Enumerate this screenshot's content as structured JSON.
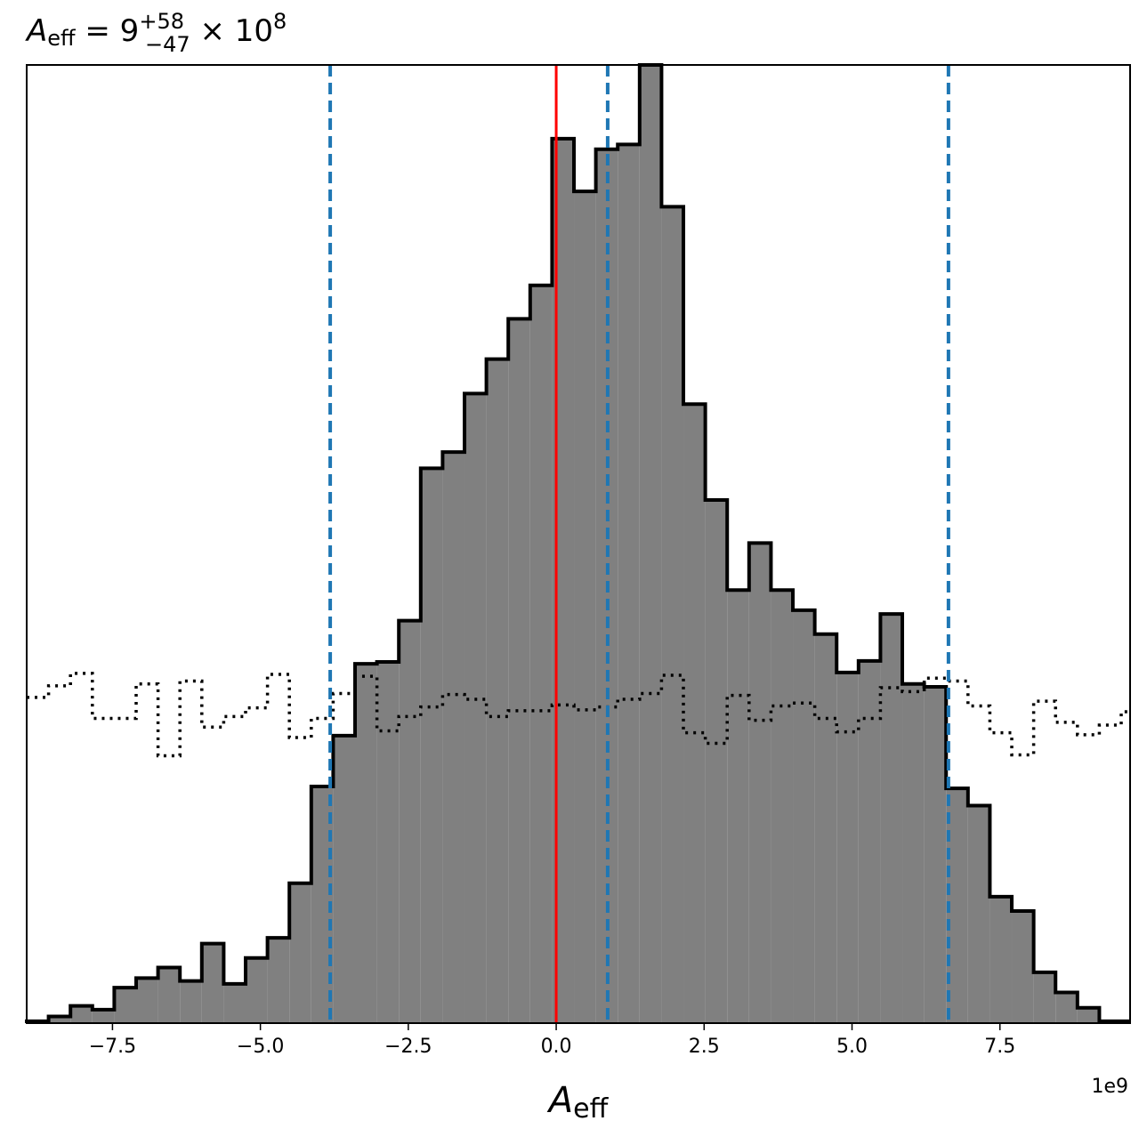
{
  "title": {
    "symbol": "A",
    "subscript": "eff",
    "equals": " = 9",
    "sup": "+58",
    "sub": "−47",
    "times": " × 10",
    "exp": "8"
  },
  "xlabel": {
    "symbol": "A",
    "subscript": "eff"
  },
  "offset_text": "1e9",
  "chart_data": {
    "type": "bar",
    "subtype": "step-histogram",
    "xlim": [
      -8.95,
      9.7
    ],
    "ylim": [
      0,
      1.0
    ],
    "xticks": [
      -7.5,
      -5.0,
      -2.5,
      0.0,
      2.5,
      5.0,
      7.5
    ],
    "xtick_labels": [
      "−7.5",
      "−5.0",
      "−2.5",
      "0.0",
      "2.5",
      "5.0",
      "7.5"
    ],
    "x_scale_note": "1e9",
    "grid": false,
    "colors": {
      "fill": "#808080",
      "outline": "#000000",
      "truth_line": "#ff0000",
      "quantile_lines": "#1f77b4",
      "prior": "#000000"
    },
    "posterior": {
      "bin_edges": [
        -8.95,
        -8.58,
        -8.21,
        -7.84,
        -7.47,
        -7.1,
        -6.73,
        -6.36,
        -5.99,
        -5.62,
        -5.25,
        -4.88,
        -4.51,
        -4.14,
        -3.77,
        -3.4,
        -3.03,
        -2.66,
        -2.29,
        -1.92,
        -1.55,
        -1.18,
        -0.81,
        -0.44,
        -0.07,
        0.3,
        0.67,
        1.04,
        1.41,
        1.78,
        2.15,
        2.52,
        2.89,
        3.26,
        3.63,
        4.0,
        4.37,
        4.74,
        5.11,
        5.48,
        5.85,
        6.22,
        6.59,
        6.96,
        7.33,
        7.7,
        8.07,
        8.44,
        8.81,
        9.18,
        9.55,
        9.7
      ],
      "heights": [
        0.002,
        0.007,
        0.018,
        0.014,
        0.037,
        0.047,
        0.058,
        0.044,
        0.083,
        0.041,
        0.068,
        0.089,
        0.146,
        0.247,
        0.3,
        0.375,
        0.377,
        0.42,
        0.579,
        0.596,
        0.657,
        0.693,
        0.735,
        0.77,
        0.923,
        0.868,
        0.912,
        0.917,
        1.0,
        0.852,
        0.646,
        0.546,
        0.452,
        0.501,
        0.452,
        0.431,
        0.406,
        0.366,
        0.378,
        0.427,
        0.354,
        0.351,
        0.245,
        0.227,
        0.132,
        0.117,
        0.053,
        0.032,
        0.016,
        0.002,
        0.002
      ]
    },
    "prior": {
      "bin_edges": [
        -8.95,
        -8.58,
        -8.21,
        -7.84,
        -7.47,
        -7.1,
        -6.73,
        -6.36,
        -5.99,
        -5.62,
        -5.25,
        -4.88,
        -4.51,
        -4.14,
        -3.77,
        -3.4,
        -3.03,
        -2.66,
        -2.29,
        -1.92,
        -1.55,
        -1.18,
        -0.81,
        -0.44,
        -0.07,
        0.3,
        0.67,
        1.04,
        1.41,
        1.78,
        2.15,
        2.52,
        2.89,
        3.26,
        3.63,
        4.0,
        4.37,
        4.74,
        5.11,
        5.48,
        5.85,
        6.22,
        6.59,
        6.96,
        7.33,
        7.7,
        8.07,
        8.44,
        8.81,
        9.18,
        9.55,
        9.7
      ],
      "heights": [
        0.34,
        0.352,
        0.365,
        0.318,
        0.318,
        0.354,
        0.279,
        0.357,
        0.309,
        0.32,
        0.329,
        0.364,
        0.298,
        0.318,
        0.344,
        0.362,
        0.305,
        0.32,
        0.33,
        0.343,
        0.338,
        0.32,
        0.326,
        0.326,
        0.332,
        0.327,
        0.33,
        0.338,
        0.344,
        0.363,
        0.303,
        0.292,
        0.342,
        0.316,
        0.331,
        0.334,
        0.318,
        0.304,
        0.318,
        0.35,
        0.346,
        0.36,
        0.357,
        0.331,
        0.303,
        0.28,
        0.336,
        0.314,
        0.301,
        0.311,
        0.325
      ]
    },
    "truth_line": 0.0,
    "quantile_lines": [
      -3.82,
      0.87,
      6.63
    ]
  }
}
